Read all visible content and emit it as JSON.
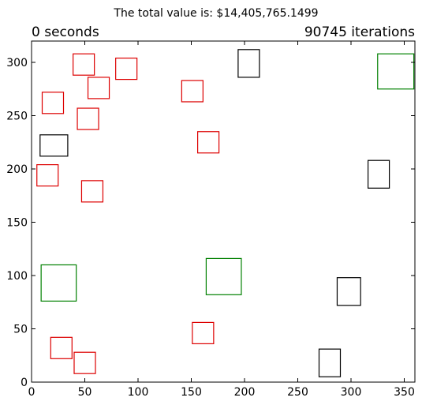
{
  "chart_data": {
    "type": "scatter",
    "title": "The total value is: $14,405,765.1499",
    "left_label": "0 seconds",
    "right_label": "90745 iterations",
    "xlim": [
      0,
      360
    ],
    "ylim": [
      0,
      320
    ],
    "xticks": [
      "0",
      "50",
      "100",
      "150",
      "200",
      "250",
      "300",
      "350"
    ],
    "yticks": [
      "0",
      "50",
      "100",
      "150",
      "200",
      "250",
      "300"
    ],
    "grid": false,
    "colors": {
      "red": "#dd0000",
      "black": "#000000",
      "green": "#008000"
    },
    "rects": [
      {
        "color": "red",
        "x0": 39,
        "x1": 59,
        "y0": 288,
        "y1": 308
      },
      {
        "color": "red",
        "x0": 79,
        "x1": 99,
        "y0": 284,
        "y1": 304
      },
      {
        "color": "red",
        "x0": 53,
        "x1": 73,
        "y0": 266,
        "y1": 286
      },
      {
        "color": "red",
        "x0": 141,
        "x1": 161,
        "y0": 263,
        "y1": 283
      },
      {
        "color": "red",
        "x0": 10,
        "x1": 30,
        "y0": 252,
        "y1": 272
      },
      {
        "color": "red",
        "x0": 43,
        "x1": 63,
        "y0": 237,
        "y1": 257
      },
      {
        "color": "red",
        "x0": 156,
        "x1": 176,
        "y0": 215,
        "y1": 235
      },
      {
        "color": "red",
        "x0": 5,
        "x1": 25,
        "y0": 184,
        "y1": 204
      },
      {
        "color": "red",
        "x0": 47,
        "x1": 67,
        "y0": 169,
        "y1": 189
      },
      {
        "color": "red",
        "x0": 151,
        "x1": 171,
        "y0": 36,
        "y1": 56
      },
      {
        "color": "red",
        "x0": 18,
        "x1": 38,
        "y0": 22,
        "y1": 42
      },
      {
        "color": "red",
        "x0": 40,
        "x1": 60,
        "y0": 8,
        "y1": 28
      },
      {
        "color": "black",
        "x0": 194,
        "x1": 214,
        "y0": 286,
        "y1": 312
      },
      {
        "color": "black",
        "x0": 8,
        "x1": 34,
        "y0": 212,
        "y1": 232
      },
      {
        "color": "black",
        "x0": 316,
        "x1": 336,
        "y0": 182,
        "y1": 208
      },
      {
        "color": "black",
        "x0": 287,
        "x1": 309,
        "y0": 72,
        "y1": 98
      },
      {
        "color": "black",
        "x0": 270,
        "x1": 290,
        "y0": 5,
        "y1": 31
      },
      {
        "color": "green",
        "x0": 325,
        "x1": 359,
        "y0": 275,
        "y1": 308
      },
      {
        "color": "green",
        "x0": 9,
        "x1": 42,
        "y0": 76,
        "y1": 110
      },
      {
        "color": "green",
        "x0": 164,
        "x1": 197,
        "y0": 82,
        "y1": 116
      }
    ]
  }
}
